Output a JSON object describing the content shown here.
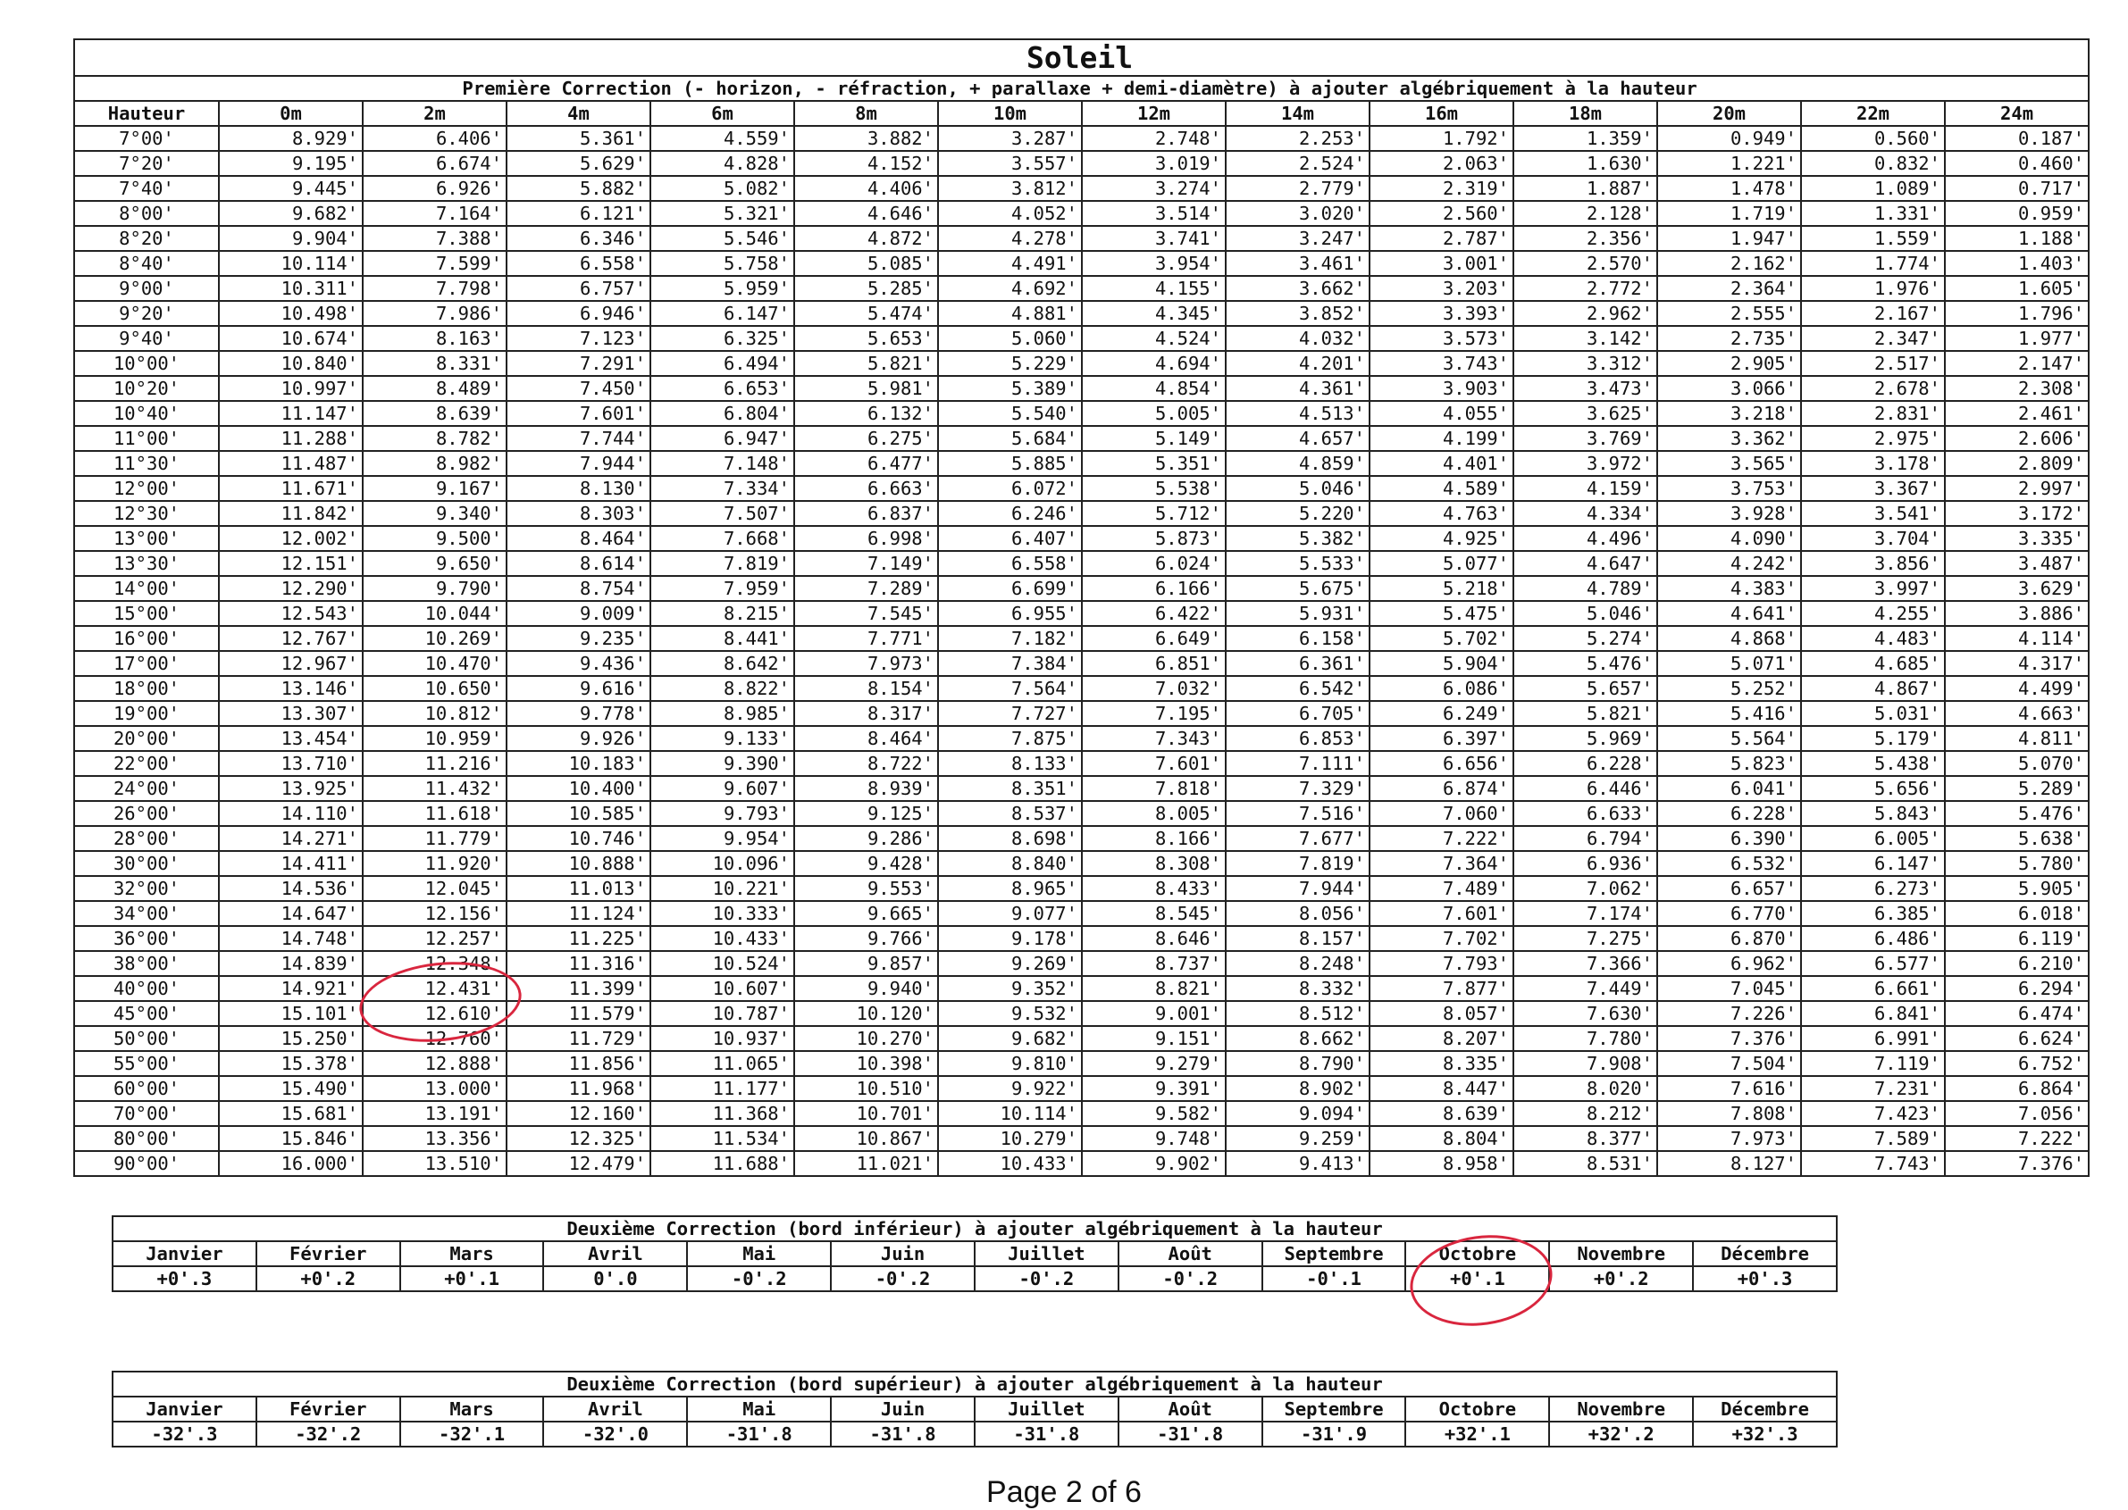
{
  "main_table": {
    "title": "Soleil",
    "subtitle": "Première Correction (- horizon, - réfraction, + parallaxe + demi-diamètre) à ajouter algébriquement à la hauteur",
    "columns": [
      "Hauteur",
      "0m",
      "2m",
      "4m",
      "6m",
      "8m",
      "10m",
      "12m",
      "14m",
      "16m",
      "18m",
      "20m",
      "22m",
      "24m"
    ],
    "rows": [
      [
        "7°00'",
        "8.929'",
        "6.406'",
        "5.361'",
        "4.559'",
        "3.882'",
        "3.287'",
        "2.748'",
        "2.253'",
        "1.792'",
        "1.359'",
        "0.949'",
        "0.560'",
        "0.187'"
      ],
      [
        "7°20'",
        "9.195'",
        "6.674'",
        "5.629'",
        "4.828'",
        "4.152'",
        "3.557'",
        "3.019'",
        "2.524'",
        "2.063'",
        "1.630'",
        "1.221'",
        "0.832'",
        "0.460'"
      ],
      [
        "7°40'",
        "9.445'",
        "6.926'",
        "5.882'",
        "5.082'",
        "4.406'",
        "3.812'",
        "3.274'",
        "2.779'",
        "2.319'",
        "1.887'",
        "1.478'",
        "1.089'",
        "0.717'"
      ],
      [
        "8°00'",
        "9.682'",
        "7.164'",
        "6.121'",
        "5.321'",
        "4.646'",
        "4.052'",
        "3.514'",
        "3.020'",
        "2.560'",
        "2.128'",
        "1.719'",
        "1.331'",
        "0.959'"
      ],
      [
        "8°20'",
        "9.904'",
        "7.388'",
        "6.346'",
        "5.546'",
        "4.872'",
        "4.278'",
        "3.741'",
        "3.247'",
        "2.787'",
        "2.356'",
        "1.947'",
        "1.559'",
        "1.188'"
      ],
      [
        "8°40'",
        "10.114'",
        "7.599'",
        "6.558'",
        "5.758'",
        "5.085'",
        "4.491'",
        "3.954'",
        "3.461'",
        "3.001'",
        "2.570'",
        "2.162'",
        "1.774'",
        "1.403'"
      ],
      [
        "9°00'",
        "10.311'",
        "7.798'",
        "6.757'",
        "5.959'",
        "5.285'",
        "4.692'",
        "4.155'",
        "3.662'",
        "3.203'",
        "2.772'",
        "2.364'",
        "1.976'",
        "1.605'"
      ],
      [
        "9°20'",
        "10.498'",
        "7.986'",
        "6.946'",
        "6.147'",
        "5.474'",
        "4.881'",
        "4.345'",
        "3.852'",
        "3.393'",
        "2.962'",
        "2.555'",
        "2.167'",
        "1.796'"
      ],
      [
        "9°40'",
        "10.674'",
        "8.163'",
        "7.123'",
        "6.325'",
        "5.653'",
        "5.060'",
        "4.524'",
        "4.032'",
        "3.573'",
        "3.142'",
        "2.735'",
        "2.347'",
        "1.977'"
      ],
      [
        "10°00'",
        "10.840'",
        "8.331'",
        "7.291'",
        "6.494'",
        "5.821'",
        "5.229'",
        "4.694'",
        "4.201'",
        "3.743'",
        "3.312'",
        "2.905'",
        "2.517'",
        "2.147'"
      ],
      [
        "10°20'",
        "10.997'",
        "8.489'",
        "7.450'",
        "6.653'",
        "5.981'",
        "5.389'",
        "4.854'",
        "4.361'",
        "3.903'",
        "3.473'",
        "3.066'",
        "2.678'",
        "2.308'"
      ],
      [
        "10°40'",
        "11.147'",
        "8.639'",
        "7.601'",
        "6.804'",
        "6.132'",
        "5.540'",
        "5.005'",
        "4.513'",
        "4.055'",
        "3.625'",
        "3.218'",
        "2.831'",
        "2.461'"
      ],
      [
        "11°00'",
        "11.288'",
        "8.782'",
        "7.744'",
        "6.947'",
        "6.275'",
        "5.684'",
        "5.149'",
        "4.657'",
        "4.199'",
        "3.769'",
        "3.362'",
        "2.975'",
        "2.606'"
      ],
      [
        "11°30'",
        "11.487'",
        "8.982'",
        "7.944'",
        "7.148'",
        "6.477'",
        "5.885'",
        "5.351'",
        "4.859'",
        "4.401'",
        "3.972'",
        "3.565'",
        "3.178'",
        "2.809'"
      ],
      [
        "12°00'",
        "11.671'",
        "9.167'",
        "8.130'",
        "7.334'",
        "6.663'",
        "6.072'",
        "5.538'",
        "5.046'",
        "4.589'",
        "4.159'",
        "3.753'",
        "3.367'",
        "2.997'"
      ],
      [
        "12°30'",
        "11.842'",
        "9.340'",
        "8.303'",
        "7.507'",
        "6.837'",
        "6.246'",
        "5.712'",
        "5.220'",
        "4.763'",
        "4.334'",
        "3.928'",
        "3.541'",
        "3.172'"
      ],
      [
        "13°00'",
        "12.002'",
        "9.500'",
        "8.464'",
        "7.668'",
        "6.998'",
        "6.407'",
        "5.873'",
        "5.382'",
        "4.925'",
        "4.496'",
        "4.090'",
        "3.704'",
        "3.335'"
      ],
      [
        "13°30'",
        "12.151'",
        "9.650'",
        "8.614'",
        "7.819'",
        "7.149'",
        "6.558'",
        "6.024'",
        "5.533'",
        "5.077'",
        "4.647'",
        "4.242'",
        "3.856'",
        "3.487'"
      ],
      [
        "14°00'",
        "12.290'",
        "9.790'",
        "8.754'",
        "7.959'",
        "7.289'",
        "6.699'",
        "6.166'",
        "5.675'",
        "5.218'",
        "4.789'",
        "4.383'",
        "3.997'",
        "3.629'"
      ],
      [
        "15°00'",
        "12.543'",
        "10.044'",
        "9.009'",
        "8.215'",
        "7.545'",
        "6.955'",
        "6.422'",
        "5.931'",
        "5.475'",
        "5.046'",
        "4.641'",
        "4.255'",
        "3.886'"
      ],
      [
        "16°00'",
        "12.767'",
        "10.269'",
        "9.235'",
        "8.441'",
        "7.771'",
        "7.182'",
        "6.649'",
        "6.158'",
        "5.702'",
        "5.274'",
        "4.868'",
        "4.483'",
        "4.114'"
      ],
      [
        "17°00'",
        "12.967'",
        "10.470'",
        "9.436'",
        "8.642'",
        "7.973'",
        "7.384'",
        "6.851'",
        "6.361'",
        "5.904'",
        "5.476'",
        "5.071'",
        "4.685'",
        "4.317'"
      ],
      [
        "18°00'",
        "13.146'",
        "10.650'",
        "9.616'",
        "8.822'",
        "8.154'",
        "7.564'",
        "7.032'",
        "6.542'",
        "6.086'",
        "5.657'",
        "5.252'",
        "4.867'",
        "4.499'"
      ],
      [
        "19°00'",
        "13.307'",
        "10.812'",
        "9.778'",
        "8.985'",
        "8.317'",
        "7.727'",
        "7.195'",
        "6.705'",
        "6.249'",
        "5.821'",
        "5.416'",
        "5.031'",
        "4.663'"
      ],
      [
        "20°00'",
        "13.454'",
        "10.959'",
        "9.926'",
        "9.133'",
        "8.464'",
        "7.875'",
        "7.343'",
        "6.853'",
        "6.397'",
        "5.969'",
        "5.564'",
        "5.179'",
        "4.811'"
      ],
      [
        "22°00'",
        "13.710'",
        "11.216'",
        "10.183'",
        "9.390'",
        "8.722'",
        "8.133'",
        "7.601'",
        "7.111'",
        "6.656'",
        "6.228'",
        "5.823'",
        "5.438'",
        "5.070'"
      ],
      [
        "24°00'",
        "13.925'",
        "11.432'",
        "10.400'",
        "9.607'",
        "8.939'",
        "8.351'",
        "7.818'",
        "7.329'",
        "6.874'",
        "6.446'",
        "6.041'",
        "5.656'",
        "5.289'"
      ],
      [
        "26°00'",
        "14.110'",
        "11.618'",
        "10.585'",
        "9.793'",
        "9.125'",
        "8.537'",
        "8.005'",
        "7.516'",
        "7.060'",
        "6.633'",
        "6.228'",
        "5.843'",
        "5.476'"
      ],
      [
        "28°00'",
        "14.271'",
        "11.779'",
        "10.746'",
        "9.954'",
        "9.286'",
        "8.698'",
        "8.166'",
        "7.677'",
        "7.222'",
        "6.794'",
        "6.390'",
        "6.005'",
        "5.638'"
      ],
      [
        "30°00'",
        "14.411'",
        "11.920'",
        "10.888'",
        "10.096'",
        "9.428'",
        "8.840'",
        "8.308'",
        "7.819'",
        "7.364'",
        "6.936'",
        "6.532'",
        "6.147'",
        "5.780'"
      ],
      [
        "32°00'",
        "14.536'",
        "12.045'",
        "11.013'",
        "10.221'",
        "9.553'",
        "8.965'",
        "8.433'",
        "7.944'",
        "7.489'",
        "7.062'",
        "6.657'",
        "6.273'",
        "5.905'"
      ],
      [
        "34°00'",
        "14.647'",
        "12.156'",
        "11.124'",
        "10.333'",
        "9.665'",
        "9.077'",
        "8.545'",
        "8.056'",
        "7.601'",
        "7.174'",
        "6.770'",
        "6.385'",
        "6.018'"
      ],
      [
        "36°00'",
        "14.748'",
        "12.257'",
        "11.225'",
        "10.433'",
        "9.766'",
        "9.178'",
        "8.646'",
        "8.157'",
        "7.702'",
        "7.275'",
        "6.870'",
        "6.486'",
        "6.119'"
      ],
      [
        "38°00'",
        "14.839'",
        "12.348'",
        "11.316'",
        "10.524'",
        "9.857'",
        "9.269'",
        "8.737'",
        "8.248'",
        "7.793'",
        "7.366'",
        "6.962'",
        "6.577'",
        "6.210'"
      ],
      [
        "40°00'",
        "14.921'",
        "12.431'",
        "11.399'",
        "10.607'",
        "9.940'",
        "9.352'",
        "8.821'",
        "8.332'",
        "7.877'",
        "7.449'",
        "7.045'",
        "6.661'",
        "6.294'"
      ],
      [
        "45°00'",
        "15.101'",
        "12.610'",
        "11.579'",
        "10.787'",
        "10.120'",
        "9.532'",
        "9.001'",
        "8.512'",
        "8.057'",
        "7.630'",
        "7.226'",
        "6.841'",
        "6.474'"
      ],
      [
        "50°00'",
        "15.250'",
        "12.760'",
        "11.729'",
        "10.937'",
        "10.270'",
        "9.682'",
        "9.151'",
        "8.662'",
        "8.207'",
        "7.780'",
        "7.376'",
        "6.991'",
        "6.624'"
      ],
      [
        "55°00'",
        "15.378'",
        "12.888'",
        "11.856'",
        "11.065'",
        "10.398'",
        "9.810'",
        "9.279'",
        "8.790'",
        "8.335'",
        "7.908'",
        "7.504'",
        "7.119'",
        "6.752'"
      ],
      [
        "60°00'",
        "15.490'",
        "13.000'",
        "11.968'",
        "11.177'",
        "10.510'",
        "9.922'",
        "9.391'",
        "8.902'",
        "8.447'",
        "8.020'",
        "7.616'",
        "7.231'",
        "6.864'"
      ],
      [
        "70°00'",
        "15.681'",
        "13.191'",
        "12.160'",
        "11.368'",
        "10.701'",
        "10.114'",
        "9.582'",
        "9.094'",
        "8.639'",
        "8.212'",
        "7.808'",
        "7.423'",
        "7.056'"
      ],
      [
        "80°00'",
        "15.846'",
        "13.356'",
        "12.325'",
        "11.534'",
        "10.867'",
        "10.279'",
        "9.748'",
        "9.259'",
        "8.804'",
        "8.377'",
        "7.973'",
        "7.589'",
        "7.222'"
      ],
      [
        "90°00'",
        "16.000'",
        "13.510'",
        "12.479'",
        "11.688'",
        "11.021'",
        "10.433'",
        "9.902'",
        "9.413'",
        "8.958'",
        "8.531'",
        "8.127'",
        "7.743'",
        "7.376'"
      ]
    ]
  },
  "lower_limb_table": {
    "title": "Deuxième Correction (bord inférieur) à ajouter algébriquement à la hauteur",
    "months": [
      "Janvier",
      "Février",
      "Mars",
      "Avril",
      "Mai",
      "Juin",
      "Juillet",
      "Août",
      "Septembre",
      "Octobre",
      "Novembre",
      "Décembre"
    ],
    "values": [
      "+0'.3",
      "+0'.2",
      "+0'.1",
      "0'.0",
      "-0'.2",
      "-0'.2",
      "-0'.2",
      "-0'.2",
      "-0'.1",
      "+0'.1",
      "+0'.2",
      "+0'.3"
    ]
  },
  "upper_limb_table": {
    "title": "Deuxième Correction (bord supérieur) à ajouter algébriquement à la hauteur",
    "months": [
      "Janvier",
      "Février",
      "Mars",
      "Avril",
      "Mai",
      "Juin",
      "Juillet",
      "Août",
      "Septembre",
      "Octobre",
      "Novembre",
      "Décembre"
    ],
    "values": [
      "-32'.3",
      "-32'.2",
      "-32'.1",
      "-32'.0",
      "-31'.8",
      "-31'.8",
      "-31'.8",
      "-31'.8",
      "-31'.9",
      "+32'.1",
      "+32'.2",
      "+32'.3"
    ]
  },
  "annotations": {
    "circle_color": "#d9263e"
  },
  "footer": {
    "page_label": "Page 2 of 6"
  }
}
